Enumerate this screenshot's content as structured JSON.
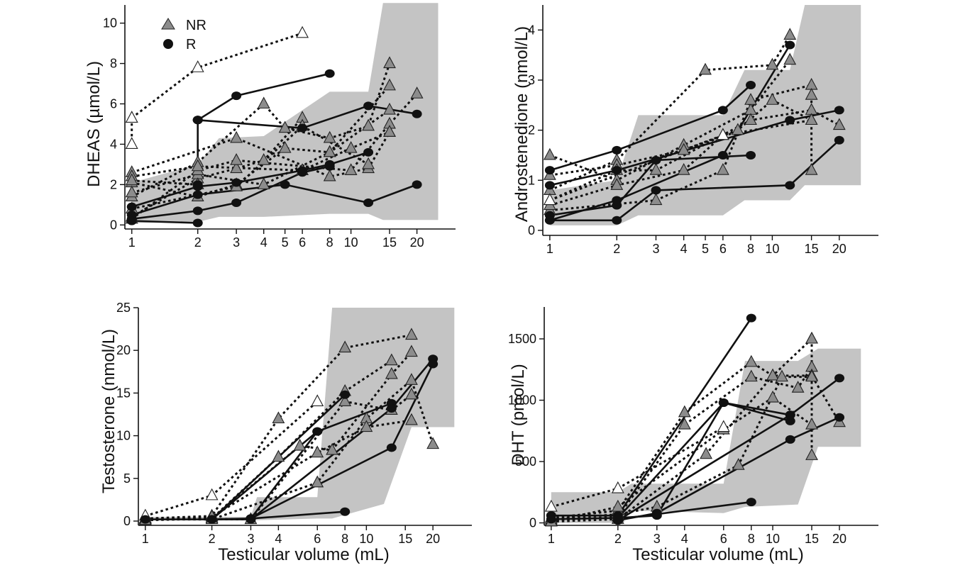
{
  "legend": [
    {
      "label": "NR",
      "marker": "triangle",
      "color": "#8c8c8c"
    },
    {
      "label": "R",
      "marker": "circle",
      "color": "#111111"
    }
  ],
  "colors": {
    "band": "#c4c4c4",
    "nr_fill": "#8c8c8c",
    "r_fill": "#111111",
    "prepubertal_fill": "#ffffff"
  },
  "chart_data": [
    {
      "type": "line",
      "id": "dheas",
      "title": "",
      "xlabel": "",
      "ylabel": "DHEAS (µmol/L)",
      "xscale": "log",
      "xlim": [
        0.93,
        30
      ],
      "ylim": [
        -0.2,
        10.9
      ],
      "xticks": [
        1,
        2,
        3,
        4,
        5,
        6,
        8,
        10,
        15,
        20
      ],
      "yticks": [
        0,
        2,
        4,
        6,
        8,
        10
      ],
      "reference_band": {
        "x": [
          1,
          2,
          2.5,
          4,
          8,
          12,
          14,
          25
        ],
        "lower": [
          0.1,
          0.15,
          0.4,
          0.4,
          0.55,
          0.55,
          0.25,
          0.25
        ],
        "upper": [
          2.1,
          3.0,
          4.3,
          4.4,
          6.6,
          6.6,
          11.0,
          11.0
        ]
      },
      "series": [
        {
          "group": "NR",
          "x": [
            1,
            2,
            3,
            4,
            6
          ],
          "y": [
            0.4,
            2.3,
            2.8,
            3.2,
            5.3
          ]
        },
        {
          "group": "NR",
          "x": [
            1,
            2,
            4,
            5,
            8,
            12,
            15
          ],
          "y": [
            1.4,
            3.1,
            6.0,
            4.8,
            4.3,
            4.9,
            8.0
          ]
        },
        {
          "group": "NR",
          "x": [
            1,
            2,
            3,
            5,
            8,
            15
          ],
          "y": [
            2.1,
            1.4,
            2.0,
            3.8,
            3.6,
            6.9
          ]
        },
        {
          "group": "NR",
          "x": [
            1,
            3,
            8,
            12,
            15
          ],
          "y": [
            2.6,
            4.3,
            2.4,
            2.8,
            4.6
          ]
        },
        {
          "group": "NR",
          "x": [
            1,
            2,
            4,
            8,
            15
          ],
          "y": [
            1.6,
            2.5,
            2.0,
            3.6,
            5.7
          ]
        },
        {
          "group": "NR",
          "x": [
            1,
            2,
            3,
            10,
            15,
            20
          ],
          "y": [
            0.3,
            2.7,
            3.2,
            2.7,
            5.0,
            6.5
          ]
        },
        {
          "group": "NR",
          "x": [
            1,
            2,
            6,
            10,
            15
          ],
          "y": [
            2.4,
            2.9,
            2.7,
            3.8,
            4.6
          ]
        },
        {
          "group": "NR",
          "x": [
            1,
            3,
            6,
            12
          ],
          "y": [
            0.8,
            1.9,
            4.9,
            3.0
          ]
        },
        {
          "group": "NR",
          "x": [
            1,
            2
          ],
          "y": [
            2.2,
            2.0
          ]
        },
        {
          "group": "NR-pre",
          "x": [
            1,
            2,
            6
          ],
          "y": [
            5.3,
            7.8,
            9.5
          ]
        },
        {
          "group": "NR-pre",
          "x": [
            1,
            1
          ],
          "y": [
            5.3,
            4.0
          ]
        },
        {
          "group": "R",
          "x": [
            2,
            3,
            8
          ],
          "y": [
            5.2,
            6.4,
            7.5
          ]
        },
        {
          "group": "R",
          "x": [
            2,
            6,
            12,
            20
          ],
          "y": [
            5.2,
            4.8,
            5.9,
            5.5
          ]
        },
        {
          "group": "R",
          "x": [
            2,
            2
          ],
          "y": [
            5.2,
            2.0
          ]
        },
        {
          "group": "R",
          "x": [
            1,
            2,
            3,
            6,
            8,
            12
          ],
          "y": [
            0.9,
            1.9,
            2.1,
            2.7,
            3.0,
            3.6
          ]
        },
        {
          "group": "R",
          "x": [
            1,
            2,
            5,
            12,
            20
          ],
          "y": [
            0.5,
            1.5,
            2.0,
            1.1,
            2.0
          ]
        },
        {
          "group": "R",
          "x": [
            1,
            2,
            3,
            6,
            8
          ],
          "y": [
            0.3,
            0.7,
            1.1,
            2.6,
            2.9
          ]
        },
        {
          "group": "R",
          "x": [
            1,
            2
          ],
          "y": [
            0.2,
            0.1
          ]
        }
      ]
    },
    {
      "type": "line",
      "id": "androstenedione",
      "title": "",
      "xlabel": "",
      "ylabel": "Androstenedione (nmol/L)",
      "xscale": "log",
      "xlim": [
        0.93,
        30
      ],
      "ylim": [
        -0.1,
        4.5
      ],
      "xticks": [
        1,
        2,
        3,
        4,
        5,
        6,
        8,
        10,
        15,
        20
      ],
      "yticks": [
        0,
        1,
        2,
        3,
        4
      ],
      "reference_band": {
        "x": [
          1,
          2,
          2.5,
          6,
          7.5,
          12,
          14,
          25
        ],
        "lower": [
          0.1,
          0.1,
          0.3,
          0.3,
          0.6,
          0.6,
          0.9,
          0.9
        ],
        "upper": [
          0.8,
          1.0,
          2.3,
          2.3,
          3.2,
          3.2,
          4.5,
          4.5
        ]
      },
      "series": [
        {
          "group": "NR",
          "x": [
            1,
            2,
            5,
            10,
            12
          ],
          "y": [
            0.8,
            1.4,
            3.2,
            3.3,
            3.9
          ]
        },
        {
          "group": "NR",
          "x": [
            1,
            2,
            4,
            8,
            12
          ],
          "y": [
            1.5,
            1.0,
            1.7,
            2.4,
            3.4
          ]
        },
        {
          "group": "NR",
          "x": [
            1,
            3,
            6,
            8,
            15
          ],
          "y": [
            0.4,
            0.6,
            1.2,
            2.6,
            2.9
          ]
        },
        {
          "group": "NR",
          "x": [
            1,
            2,
            4,
            7,
            10,
            15
          ],
          "y": [
            1.1,
            1.3,
            1.6,
            2.0,
            2.6,
            2.2
          ]
        },
        {
          "group": "NR",
          "x": [
            1,
            2,
            3,
            8,
            15,
            20
          ],
          "y": [
            0.6,
            1.2,
            1.2,
            2.2,
            2.4,
            2.1
          ]
        },
        {
          "group": "NR",
          "x": [
            1,
            2,
            4,
            6,
            15
          ],
          "y": [
            0.5,
            0.9,
            1.2,
            1.9,
            2.2
          ]
        },
        {
          "group": "NR",
          "x": [
            15,
            15
          ],
          "y": [
            2.7,
            1.2
          ]
        },
        {
          "group": "NR-pre",
          "x": [
            1,
            6
          ],
          "y": [
            0.6,
            1.9
          ]
        },
        {
          "group": "R",
          "x": [
            1,
            2,
            6,
            8
          ],
          "y": [
            1.2,
            1.6,
            2.4,
            2.9
          ]
        },
        {
          "group": "R",
          "x": [
            1,
            2,
            6,
            12
          ],
          "y": [
            0.2,
            0.6,
            1.5,
            3.7
          ]
        },
        {
          "group": "R",
          "x": [
            1,
            2,
            12,
            20
          ],
          "y": [
            0.9,
            1.2,
            2.2,
            2.4
          ]
        },
        {
          "group": "R",
          "x": [
            1,
            2,
            3,
            8
          ],
          "y": [
            0.3,
            0.5,
            1.4,
            1.5
          ]
        },
        {
          "group": "R",
          "x": [
            1,
            2,
            3,
            12,
            20
          ],
          "y": [
            0.2,
            0.2,
            0.8,
            0.9,
            1.8
          ]
        }
      ]
    },
    {
      "type": "line",
      "id": "testosterone",
      "title": "",
      "xlabel": "Testicular volume (mL)",
      "ylabel": "Testosterone (nmol/L)",
      "xscale": "log",
      "xlim": [
        0.93,
        30
      ],
      "ylim": [
        -0.5,
        25
      ],
      "xticks": [
        1,
        2,
        3,
        4,
        6,
        8,
        10,
        15,
        20
      ],
      "yticks": [
        0,
        5,
        10,
        15,
        20,
        25
      ],
      "reference_band": {
        "x": [
          1,
          3,
          3.2,
          6,
          7,
          12,
          16,
          25
        ],
        "lower": [
          0.1,
          0.1,
          0.1,
          0.3,
          0.3,
          2.0,
          11.0,
          11.0
        ],
        "upper": [
          0.5,
          0.5,
          2.8,
          2.8,
          25.0,
          25.0,
          25.0,
          25.0
        ]
      },
      "series": [
        {
          "group": "NR",
          "x": [
            1,
            2,
            4,
            8,
            16
          ],
          "y": [
            0.3,
            0.6,
            12.0,
            20.3,
            21.8
          ]
        },
        {
          "group": "NR",
          "x": [
            1,
            2,
            4,
            8,
            13
          ],
          "y": [
            0.2,
            0.3,
            7.5,
            15.2,
            18.8
          ]
        },
        {
          "group": "NR",
          "x": [
            1,
            2,
            5,
            7,
            13,
            16
          ],
          "y": [
            0.1,
            0.3,
            8.8,
            8.3,
            17.2,
            19.8
          ]
        },
        {
          "group": "NR",
          "x": [
            1,
            2,
            6,
            10,
            16,
            20
          ],
          "y": [
            0.2,
            0.2,
            4.5,
            12.0,
            16.5,
            9.0
          ]
        },
        {
          "group": "NR",
          "x": [
            1,
            3,
            8,
            13,
            16
          ],
          "y": [
            0.3,
            0.2,
            14.0,
            13.0,
            14.8
          ]
        },
        {
          "group": "NR",
          "x": [
            1,
            2,
            6,
            10,
            16
          ],
          "y": [
            0.1,
            0.5,
            8.0,
            11.0,
            11.8
          ]
        },
        {
          "group": "NR-pre",
          "x": [
            1,
            2,
            6
          ],
          "y": [
            0.6,
            3.0,
            14.0
          ]
        },
        {
          "group": "R",
          "x": [
            1,
            2,
            8
          ],
          "y": [
            0.2,
            0.2,
            14.8
          ]
        },
        {
          "group": "R",
          "x": [
            2,
            3,
            8
          ],
          "y": [
            0.2,
            0.3,
            1.1
          ]
        },
        {
          "group": "R",
          "x": [
            2,
            6,
            13
          ],
          "y": [
            0.2,
            10.5,
            13.8
          ]
        },
        {
          "group": "R",
          "x": [
            2,
            3,
            13,
            20
          ],
          "y": [
            0.2,
            0.2,
            13.2,
            19.0
          ]
        },
        {
          "group": "R",
          "x": [
            3,
            6
          ],
          "y": [
            0.3,
            10.5
          ]
        },
        {
          "group": "R",
          "x": [
            3,
            13,
            20
          ],
          "y": [
            0.3,
            8.6,
            18.4
          ]
        }
      ]
    },
    {
      "type": "line",
      "id": "dht",
      "title": "",
      "xlabel": "Testicular volume (mL)",
      "ylabel": "DHT (pmol/L)",
      "xscale": "log",
      "xlim": [
        0.93,
        30
      ],
      "ylim": [
        -20,
        1760
      ],
      "xticks": [
        1,
        2,
        3,
        4,
        6,
        8,
        10,
        15,
        20
      ],
      "yticks": [
        0,
        500,
        1000,
        1500
      ],
      "reference_band": {
        "x": [
          1,
          2,
          2.3,
          6,
          7.5,
          13,
          16,
          25
        ],
        "lower": [
          0,
          0,
          100,
          80,
          130,
          150,
          620,
          620
        ],
        "upper": [
          250,
          250,
          320,
          320,
          1320,
          1320,
          1420,
          1420
        ]
      },
      "series": [
        {
          "group": "NR",
          "x": [
            1,
            2,
            4,
            8,
            10,
            15
          ],
          "y": [
            40,
            100,
            900,
            1310,
            1200,
            1500
          ]
        },
        {
          "group": "NR",
          "x": [
            1,
            2,
            4,
            8,
            13,
            15
          ],
          "y": [
            20,
            50,
            800,
            1190,
            1100,
            1270
          ]
        },
        {
          "group": "NR",
          "x": [
            1,
            2,
            5,
            10,
            15,
            20
          ],
          "y": [
            10,
            30,
            560,
            1200,
            1200,
            820
          ]
        },
        {
          "group": "NR",
          "x": [
            1,
            2,
            3,
            7,
            11,
            15
          ],
          "y": [
            30,
            70,
            130,
            470,
            1190,
            1190
          ]
        },
        {
          "group": "NR",
          "x": [
            1,
            2,
            6,
            10,
            15
          ],
          "y": [
            10,
            130,
            760,
            1020,
            800
          ]
        },
        {
          "group": "NR",
          "x": [
            15,
            15
          ],
          "y": [
            1500,
            550
          ]
        },
        {
          "group": "NR-pre",
          "x": [
            1,
            2,
            6
          ],
          "y": [
            130,
            280,
            780
          ]
        },
        {
          "group": "R",
          "x": [
            1,
            2,
            8
          ],
          "y": [
            60,
            60,
            1670
          ]
        },
        {
          "group": "R",
          "x": [
            1,
            2,
            6,
            12
          ],
          "y": [
            30,
            40,
            980,
            830
          ]
        },
        {
          "group": "R",
          "x": [
            2,
            3,
            6,
            12
          ],
          "y": [
            40,
            60,
            980,
            880
          ]
        },
        {
          "group": "R",
          "x": [
            2,
            3,
            12,
            20
          ],
          "y": [
            20,
            80,
            680,
            860
          ]
        },
        {
          "group": "R",
          "x": [
            2,
            12,
            20
          ],
          "y": [
            20,
            880,
            1180
          ]
        },
        {
          "group": "R",
          "x": [
            2,
            8
          ],
          "y": [
            30,
            170
          ]
        }
      ]
    }
  ]
}
